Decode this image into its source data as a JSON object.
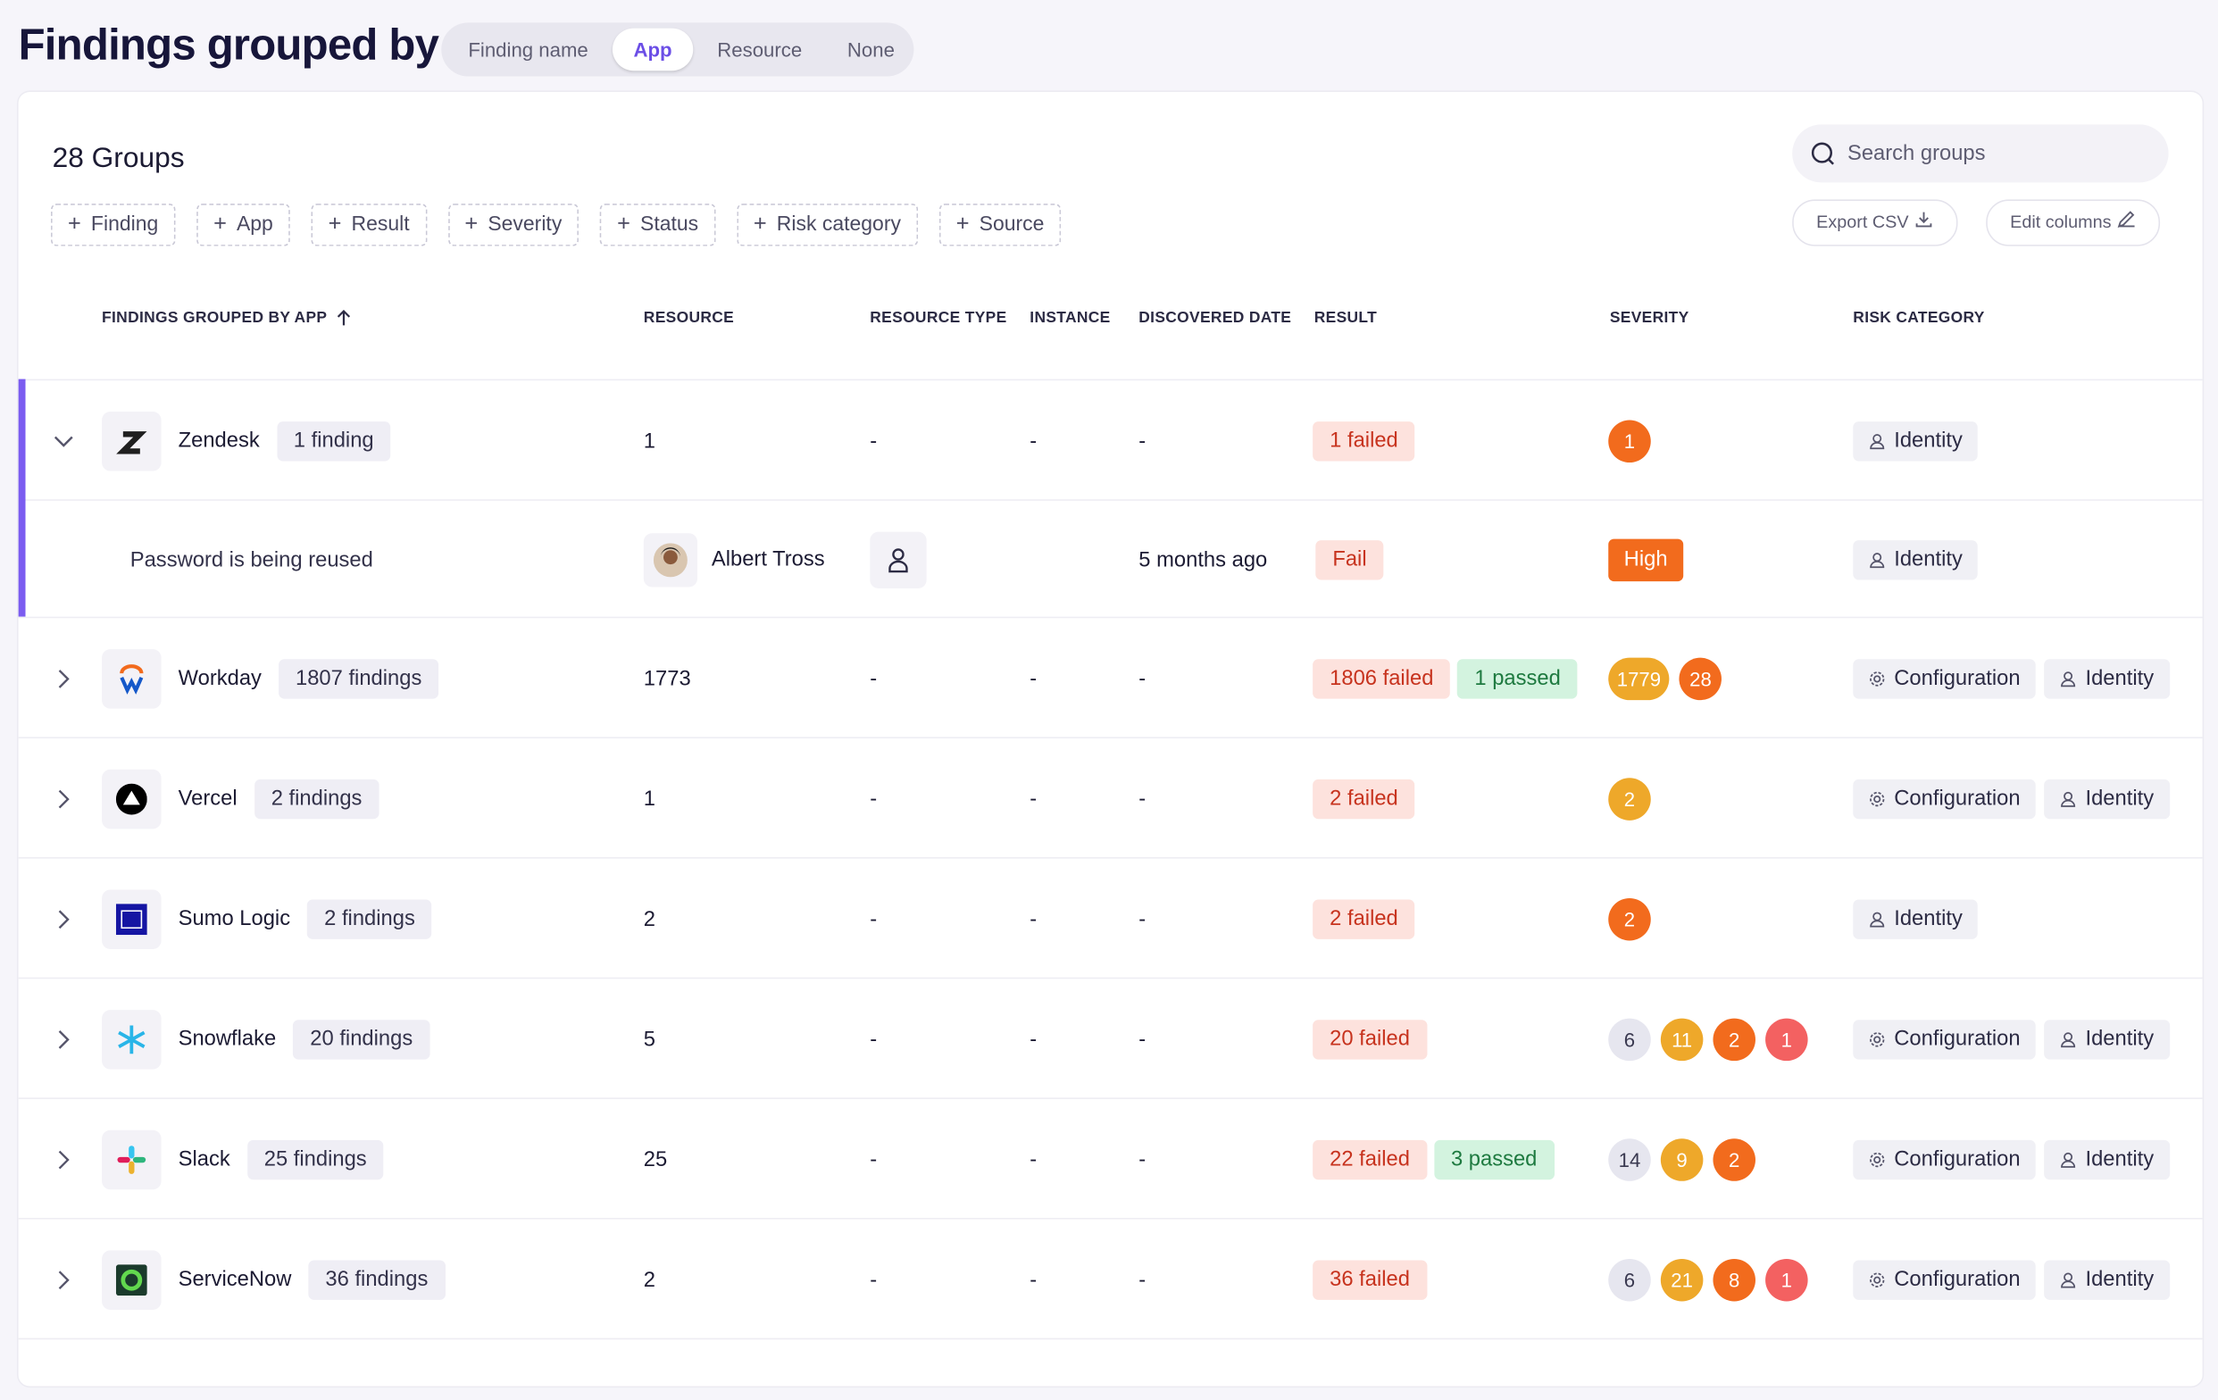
{
  "header": {
    "title": "Findings grouped by",
    "tabs": [
      "Finding name",
      "App",
      "Resource",
      "None"
    ]
  },
  "panel": {
    "group_count": "28 Groups",
    "search_placeholder": "Search groups",
    "filters": [
      "Finding",
      "App",
      "Result",
      "Severity",
      "Status",
      "Risk category",
      "Source"
    ],
    "actions": [
      "Export CSV",
      "Edit columns"
    ],
    "columns": [
      "FINDINGS GROUPED BY APP",
      "RESOURCE",
      "RESOURCE TYPE",
      "INSTANCE",
      "DISCOVERED DATE",
      "RESULT",
      "SEVERITY",
      "RISK CATEGORY"
    ]
  },
  "rows": [
    {
      "app": "Zendesk",
      "count": "1 finding",
      "resource": 1,
      "resource_type": "-",
      "instance": "-",
      "discovered": "-",
      "result": [
        {
          "label": "1 failed",
          "kind": "fail"
        }
      ],
      "severity": [
        {
          "label": 1,
          "color": "#f26b1d"
        }
      ],
      "risk": [
        "Identity"
      ],
      "expanded": true,
      "children": [
        {
          "finding": "Password is being reused",
          "resource": "Albert Tross",
          "discovered": "5 months ago",
          "result": [
            {
              "label": "Fail",
              "kind": "fail"
            }
          ],
          "severity": [
            {
              "label": "High",
              "color": "#f26b1d"
            }
          ],
          "risk": [
            "Identity"
          ]
        }
      ]
    },
    {
      "app": "Workday",
      "count": "1807 findings",
      "resource": 1773,
      "resource_type": "-",
      "instance": "-",
      "discovered": "-",
      "result": [
        {
          "label": "1806 failed",
          "kind": "fail"
        },
        {
          "label": "1 passed",
          "kind": "pass"
        }
      ],
      "severity": [
        {
          "label": 1779,
          "color": "#eea82a"
        },
        {
          "label": 28,
          "color": "#f26b1d"
        }
      ],
      "risk": [
        "Configuration",
        "Identity"
      ],
      "expanded": false
    },
    {
      "app": "Vercel",
      "count": "2 findings",
      "resource": 1,
      "resource_type": "-",
      "instance": "-",
      "discovered": "-",
      "result": [
        {
          "label": "2 failed",
          "kind": "fail"
        }
      ],
      "severity": [
        {
          "label": 2,
          "color": "#eea82a"
        }
      ],
      "risk": [
        "Configuration",
        "Identity"
      ],
      "expanded": false
    },
    {
      "app": "Sumo Logic",
      "count": "2 findings",
      "resource": 2,
      "resource_type": "-",
      "instance": "-",
      "discovered": "-",
      "result": [
        {
          "label": "2 failed",
          "kind": "fail"
        }
      ],
      "severity": [
        {
          "label": 2,
          "color": "#f26b1d"
        }
      ],
      "risk": [
        "Identity"
      ],
      "expanded": false
    },
    {
      "app": "Snowflake",
      "count": "20 findings",
      "resource": 5,
      "resource_type": "-",
      "instance": "-",
      "discovered": "-",
      "result": [
        {
          "label": "20 failed",
          "kind": "fail"
        }
      ],
      "severity": [
        {
          "label": 6,
          "color": "#e6e6ef"
        },
        {
          "label": 11,
          "color": "#eea82a"
        },
        {
          "label": 2,
          "color": "#f26b1d"
        },
        {
          "label": 1,
          "color": "#f36161"
        }
      ],
      "risk": [
        "Configuration",
        "Identity"
      ],
      "expanded": false
    },
    {
      "app": "Slack",
      "count": "25 findings",
      "resource": 25,
      "resource_type": "-",
      "instance": "-",
      "discovered": "-",
      "result": [
        {
          "label": "22 failed",
          "kind": "fail"
        },
        {
          "label": "3 passed",
          "kind": "pass"
        }
      ],
      "severity": [
        {
          "label": 14,
          "color": "#e6e6ef"
        },
        {
          "label": 9,
          "color": "#eea82a"
        },
        {
          "label": 2,
          "color": "#f26b1d"
        }
      ],
      "risk": [
        "Configuration",
        "Identity"
      ],
      "expanded": false
    },
    {
      "app": "ServiceNow",
      "count": "36 findings",
      "resource": 2,
      "resource_type": "-",
      "instance": "-",
      "discovered": "-",
      "result": [
        {
          "label": "36 failed",
          "kind": "fail"
        }
      ],
      "severity": [
        {
          "label": 6,
          "color": "#e6e6ef"
        },
        {
          "label": 21,
          "color": "#eea82a"
        },
        {
          "label": 8,
          "color": "#f26b1d"
        },
        {
          "label": 1,
          "color": "#f36161"
        }
      ],
      "risk": [
        "Configuration",
        "Identity"
      ],
      "expanded": false
    }
  ]
}
